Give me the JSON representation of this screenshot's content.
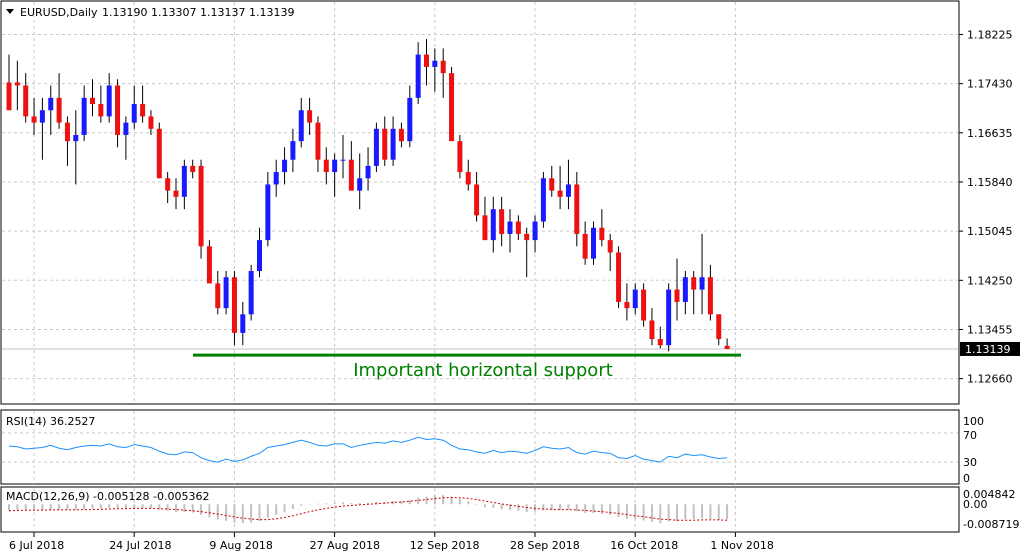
{
  "header": {
    "symbol": "EURUSD,Daily",
    "ohlc": "1.13190 1.13307 1.13137 1.13139"
  },
  "price_tag": "1.13139",
  "annotation": "Important horizontal support",
  "colors": {
    "bull": "#1a1aff",
    "bear": "#ee1111",
    "wick": "#000000",
    "grid": "#c8c8c8",
    "support": "#008000",
    "rsi": "#1e90ff",
    "macd_hist": "#c0c0c0",
    "macd_signal": "#cc0000"
  },
  "rsi_panel": {
    "label": "RSI(14) 36.2527",
    "ticks": [
      "100",
      "70",
      "30",
      "0"
    ]
  },
  "macd_panel": {
    "label": "MACD(12,26,9) -0.005128 -0.005362",
    "ticks": [
      "0.004842",
      "0.00",
      "-0.008719"
    ]
  },
  "chart_data": {
    "type": "candlestick",
    "title": "EURUSD,Daily",
    "ylim": [
      1.1225,
      1.1875
    ],
    "y_ticks": [
      1.18225,
      1.1743,
      1.16635,
      1.1584,
      1.15045,
      1.1425,
      1.13455,
      1.1266
    ],
    "y_tick_labels": [
      "1.18225",
      "1.17430",
      "1.16635",
      "1.15840",
      "1.15045",
      "1.14250",
      "1.13455",
      "1.12660"
    ],
    "x_tick_labels": [
      {
        "index": 0,
        "label": "6 Jul 2018"
      },
      {
        "index": 12,
        "label": "24 Jul 2018"
      },
      {
        "index": 24,
        "label": "9 Aug 2018"
      },
      {
        "index": 36,
        "label": "27 Aug 2018"
      },
      {
        "index": 48,
        "label": "12 Sep 2018"
      },
      {
        "index": 60,
        "label": "28 Sep 2018"
      },
      {
        "index": 72,
        "label": "16 Oct 2018"
      },
      {
        "index": 84,
        "label": "1 Nov 2018"
      }
    ],
    "candles": [
      [
        1.1745,
        1.179,
        1.17,
        1.17
      ],
      [
        1.1745,
        1.178,
        1.17,
        1.174
      ],
      [
        1.174,
        1.176,
        1.168,
        1.169
      ],
      [
        1.169,
        1.172,
        1.166,
        1.168
      ],
      [
        1.168,
        1.172,
        1.162,
        1.17
      ],
      [
        1.17,
        1.174,
        1.166,
        1.172
      ],
      [
        1.172,
        1.176,
        1.167,
        1.168
      ],
      [
        1.168,
        1.169,
        1.161,
        1.165
      ],
      [
        1.165,
        1.17,
        1.158,
        1.166
      ],
      [
        1.166,
        1.174,
        1.165,
        1.172
      ],
      [
        1.172,
        1.175,
        1.169,
        1.171
      ],
      [
        1.171,
        1.174,
        1.168,
        1.169
      ],
      [
        1.169,
        1.176,
        1.168,
        1.174
      ],
      [
        1.174,
        1.175,
        1.164,
        1.166
      ],
      [
        1.166,
        1.169,
        1.162,
        1.168
      ],
      [
        1.168,
        1.174,
        1.167,
        1.171
      ],
      [
        1.171,
        1.174,
        1.168,
        1.169
      ],
      [
        1.169,
        1.17,
        1.166,
        1.167
      ],
      [
        1.167,
        1.168,
        1.159,
        1.159
      ],
      [
        1.159,
        1.16,
        1.155,
        1.157
      ],
      [
        1.157,
        1.159,
        1.154,
        1.156
      ],
      [
        1.156,
        1.162,
        1.154,
        1.161
      ],
      [
        1.161,
        1.162,
        1.159,
        1.16
      ],
      [
        1.161,
        1.162,
        1.146,
        1.148
      ],
      [
        1.148,
        1.149,
        1.142,
        1.142
      ],
      [
        1.142,
        1.144,
        1.137,
        1.138
      ],
      [
        1.138,
        1.144,
        1.137,
        1.143
      ],
      [
        1.143,
        1.144,
        1.132,
        1.134
      ],
      [
        1.134,
        1.139,
        1.132,
        1.137
      ],
      [
        1.137,
        1.145,
        1.136,
        1.144
      ],
      [
        1.144,
        1.151,
        1.143,
        1.149
      ],
      [
        1.149,
        1.16,
        1.148,
        1.158
      ],
      [
        1.158,
        1.162,
        1.156,
        1.16
      ],
      [
        1.16,
        1.164,
        1.158,
        1.162
      ],
      [
        1.162,
        1.167,
        1.16,
        1.165
      ],
      [
        1.165,
        1.172,
        1.164,
        1.17
      ],
      [
        1.17,
        1.172,
        1.166,
        1.168
      ],
      [
        1.168,
        1.169,
        1.16,
        1.162
      ],
      [
        1.162,
        1.164,
        1.158,
        1.16
      ],
      [
        1.16,
        1.163,
        1.156,
        1.162
      ],
      [
        1.162,
        1.166,
        1.159,
        1.162
      ],
      [
        1.162,
        1.165,
        1.157,
        1.157
      ],
      [
        1.157,
        1.163,
        1.154,
        1.159
      ],
      [
        1.159,
        1.164,
        1.157,
        1.161
      ],
      [
        1.161,
        1.168,
        1.16,
        1.167
      ],
      [
        1.167,
        1.169,
        1.161,
        1.162
      ],
      [
        1.162,
        1.169,
        1.161,
        1.167
      ],
      [
        1.167,
        1.168,
        1.164,
        1.165
      ],
      [
        1.165,
        1.174,
        1.164,
        1.172
      ],
      [
        1.172,
        1.181,
        1.171,
        1.179
      ],
      [
        1.179,
        1.1815,
        1.174,
        1.177
      ],
      [
        1.177,
        1.18,
        1.173,
        1.178
      ],
      [
        1.178,
        1.18,
        1.172,
        1.176
      ],
      [
        1.176,
        1.177,
        1.165,
        1.165
      ],
      [
        1.165,
        1.166,
        1.159,
        1.16
      ],
      [
        1.16,
        1.162,
        1.157,
        1.158
      ],
      [
        1.158,
        1.16,
        1.152,
        1.153
      ],
      [
        1.153,
        1.156,
        1.149,
        1.149
      ],
      [
        1.149,
        1.156,
        1.147,
        1.154
      ],
      [
        1.154,
        1.156,
        1.148,
        1.15
      ],
      [
        1.15,
        1.154,
        1.147,
        1.152
      ],
      [
        1.152,
        1.153,
        1.149,
        1.15
      ],
      [
        1.15,
        1.151,
        1.143,
        1.149
      ],
      [
        1.149,
        1.153,
        1.147,
        1.152
      ],
      [
        1.152,
        1.16,
        1.151,
        1.159
      ],
      [
        1.159,
        1.161,
        1.156,
        1.157
      ],
      [
        1.157,
        1.161,
        1.154,
        1.156
      ],
      [
        1.156,
        1.162,
        1.154,
        1.158
      ],
      [
        1.158,
        1.16,
        1.148,
        1.15
      ],
      [
        1.15,
        1.152,
        1.145,
        1.146
      ],
      [
        1.146,
        1.152,
        1.145,
        1.151
      ],
      [
        1.151,
        1.154,
        1.148,
        1.149
      ],
      [
        1.149,
        1.15,
        1.144,
        1.147
      ],
      [
        1.147,
        1.148,
        1.138,
        1.139
      ],
      [
        1.139,
        1.142,
        1.136,
        1.138
      ],
      [
        1.138,
        1.142,
        1.137,
        1.141
      ],
      [
        1.141,
        1.142,
        1.135,
        1.136
      ],
      [
        1.136,
        1.138,
        1.132,
        1.133
      ],
      [
        1.133,
        1.135,
        1.1315,
        1.132
      ],
      [
        1.132,
        1.142,
        1.131,
        1.141
      ],
      [
        1.141,
        1.146,
        1.136,
        1.139
      ],
      [
        1.139,
        1.144,
        1.137,
        1.143
      ],
      [
        1.143,
        1.144,
        1.137,
        1.141
      ],
      [
        1.141,
        1.15,
        1.137,
        1.143
      ],
      [
        1.143,
        1.145,
        1.136,
        1.137
      ],
      [
        1.137,
        1.137,
        1.132,
        1.133
      ],
      [
        1.1319,
        1.1331,
        1.1314,
        1.1314
      ]
    ],
    "support_level": 1.1304,
    "support_label": "Important horizontal support",
    "rsi": {
      "name": "RSI(14)",
      "last": 36.2527,
      "ylim": [
        0,
        100
      ],
      "levels": [
        70,
        30
      ],
      "values": [
        52,
        51,
        48,
        49,
        50,
        53,
        49,
        47,
        50,
        52,
        53,
        52,
        55,
        51,
        50,
        54,
        52,
        50,
        45,
        41,
        40,
        44,
        43,
        36,
        32,
        30,
        34,
        31,
        33,
        38,
        42,
        50,
        52,
        54,
        57,
        60,
        57,
        53,
        52,
        55,
        55,
        50,
        53,
        55,
        57,
        56,
        59,
        57,
        60,
        64,
        61,
        62,
        60,
        53,
        48,
        47,
        44,
        42,
        46,
        43,
        45,
        44,
        42,
        46,
        51,
        49,
        48,
        50,
        43,
        41,
        45,
        43,
        42,
        36,
        35,
        39,
        34,
        32,
        30,
        38,
        36,
        41,
        39,
        40,
        37,
        35,
        36
      ]
    },
    "macd": {
      "name": "MACD(12,26,9)",
      "last_macd": -0.005128,
      "last_signal": -0.005362,
      "ylim": [
        -0.008719,
        0.004842
      ],
      "hist": [
        -0.0021,
        -0.0019,
        -0.0018,
        -0.0019,
        -0.002,
        -0.0018,
        -0.0017,
        -0.0018,
        -0.0019,
        -0.0017,
        -0.0015,
        -0.0014,
        -0.0012,
        -0.0013,
        -0.0014,
        -0.0013,
        -0.0012,
        -0.0013,
        -0.0018,
        -0.0022,
        -0.0026,
        -0.0027,
        -0.0028,
        -0.0036,
        -0.0044,
        -0.0052,
        -0.0056,
        -0.0062,
        -0.0064,
        -0.0062,
        -0.0057,
        -0.0046,
        -0.0036,
        -0.0027,
        -0.0016,
        -0.0005,
        0.0001,
        0.0002,
        0.0003,
        0.0004,
        0.0006,
        0.0004,
        0.0004,
        0.0005,
        0.0008,
        0.0008,
        0.0011,
        0.0011,
        0.0015,
        0.0022,
        0.0026,
        0.003,
        0.0031,
        0.0026,
        0.0018,
        0.001,
        0.0,
        -0.001,
        -0.0012,
        -0.0017,
        -0.0019,
        -0.0022,
        -0.0026,
        -0.0025,
        -0.002,
        -0.0019,
        -0.0019,
        -0.0018,
        -0.0023,
        -0.0029,
        -0.003,
        -0.0033,
        -0.0036,
        -0.0043,
        -0.0049,
        -0.005,
        -0.0055,
        -0.006,
        -0.0064,
        -0.0058,
        -0.0057,
        -0.0051,
        -0.005,
        -0.0047,
        -0.005,
        -0.0054,
        -0.0051
      ],
      "signal": [
        -0.0022,
        -0.0021,
        -0.002,
        -0.002,
        -0.002,
        -0.0019,
        -0.0019,
        -0.0019,
        -0.0019,
        -0.0018,
        -0.0018,
        -0.0017,
        -0.0016,
        -0.0015,
        -0.0015,
        -0.0014,
        -0.0014,
        -0.0014,
        -0.0015,
        -0.0016,
        -0.0018,
        -0.002,
        -0.0022,
        -0.0025,
        -0.0029,
        -0.0033,
        -0.0038,
        -0.0043,
        -0.0047,
        -0.005,
        -0.0052,
        -0.0052,
        -0.0049,
        -0.0045,
        -0.0039,
        -0.0032,
        -0.0025,
        -0.0019,
        -0.0014,
        -0.001,
        -0.0006,
        -0.0004,
        -0.0002,
        0.0,
        0.0002,
        0.0004,
        0.0006,
        0.0008,
        0.001,
        0.0013,
        0.0016,
        0.0019,
        0.0022,
        0.0023,
        0.0022,
        0.002,
        0.0016,
        0.0011,
        0.0006,
        0.0001,
        -0.0003,
        -0.0007,
        -0.0011,
        -0.0014,
        -0.0016,
        -0.0017,
        -0.0018,
        -0.0018,
        -0.0019,
        -0.0021,
        -0.0023,
        -0.0025,
        -0.0028,
        -0.0031,
        -0.0035,
        -0.0039,
        -0.0042,
        -0.0046,
        -0.005,
        -0.0052,
        -0.0054,
        -0.0054,
        -0.0054,
        -0.0053,
        -0.0053,
        -0.0053,
        -0.0054
      ]
    }
  }
}
